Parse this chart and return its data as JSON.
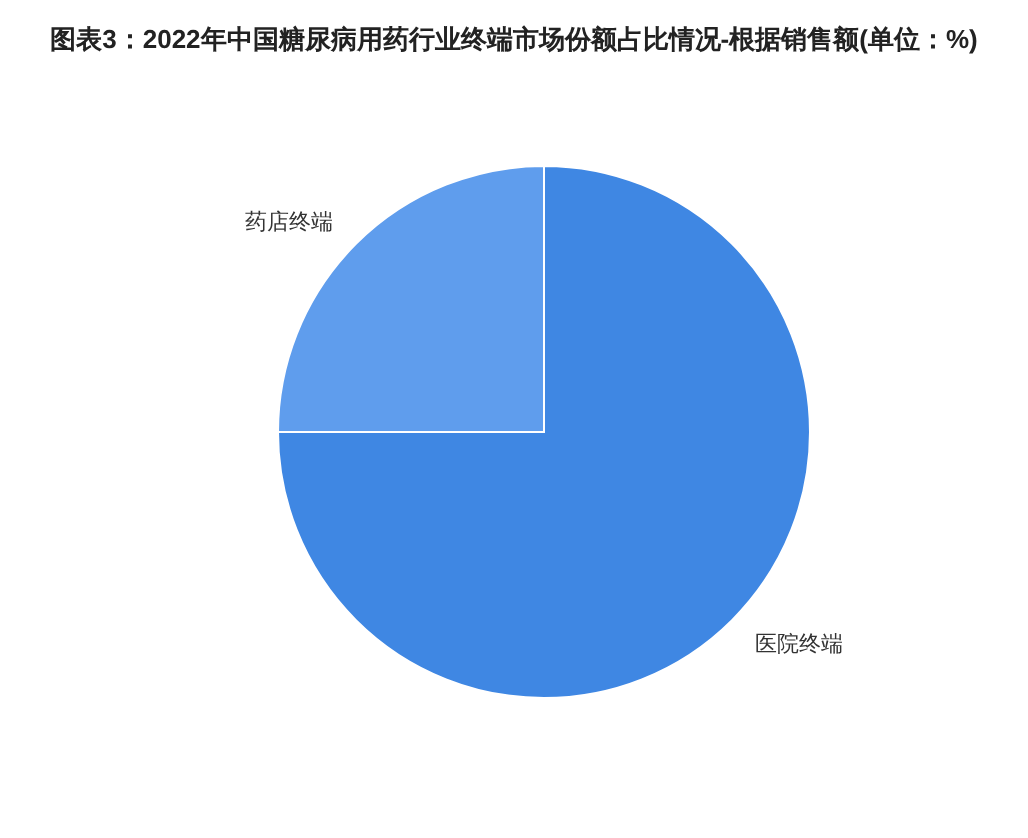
{
  "chart_data": {
    "type": "pie",
    "title": "图表3：2022年中国糖尿病用药行业终端市场份额占比情况-根据销售额(单位：%)",
    "categories": [
      "医院终端",
      "药店终端"
    ],
    "values": [
      75,
      25
    ],
    "colors": [
      "#3f87e3",
      "#5f9ded"
    ]
  }
}
